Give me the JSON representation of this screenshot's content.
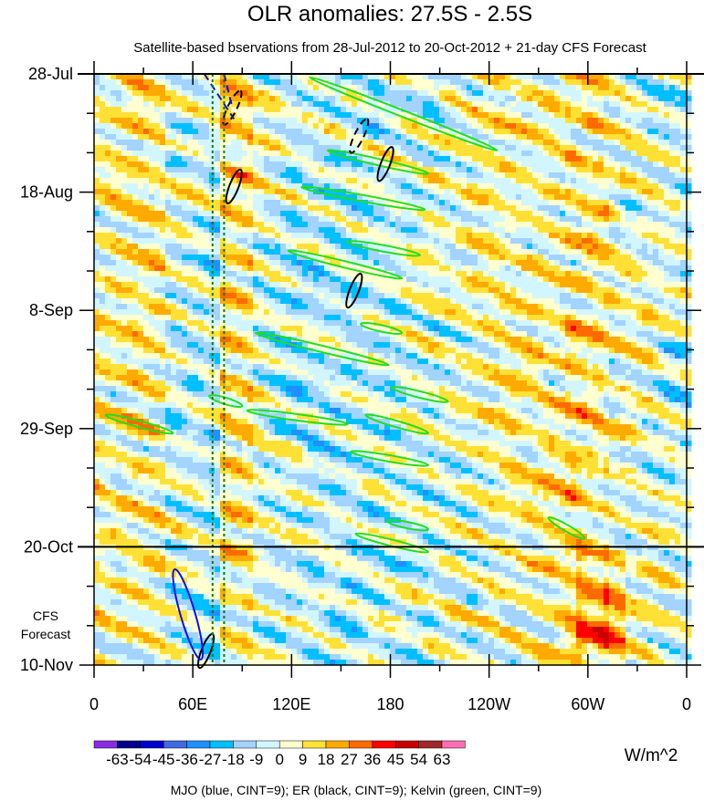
{
  "chart_data": {
    "type": "heatmap",
    "title": "OLR anomalies: 27.5S - 2.5S",
    "subtitle": "Satellite-based bservations from 28-Jul-2012 to 20-Oct-2012 + 21-day CFS Forecast",
    "x_ticks": [
      {
        "lon": 0,
        "label": "0"
      },
      {
        "lon": 60,
        "label": "60E"
      },
      {
        "lon": 120,
        "label": "120E"
      },
      {
        "lon": 180,
        "label": "180"
      },
      {
        "lon": 240,
        "label": "120W"
      },
      {
        "lon": 300,
        "label": "60W"
      },
      {
        "lon": 360,
        "label": "0"
      }
    ],
    "y_ticks": [
      {
        "day": 0,
        "label": "28-Jul"
      },
      {
        "day": 21,
        "label": "18-Aug"
      },
      {
        "day": 42,
        "label": "8-Sep"
      },
      {
        "day": 63,
        "label": "29-Sep"
      },
      {
        "day": 84,
        "label": "20-Oct"
      },
      {
        "day": 105,
        "label": "10-Nov"
      }
    ],
    "xlim": [
      0,
      360
    ],
    "ylim_days": [
      0,
      105
    ],
    "observation_end_day": 84,
    "forecast_label": [
      "CFS",
      "Forecast"
    ],
    "colorbar": {
      "levels": [
        "-63",
        "-54",
        "-45",
        "-36",
        "-27",
        "-18",
        "-9",
        "0",
        "9",
        "18",
        "27",
        "36",
        "45",
        "54",
        "63"
      ],
      "colors": [
        "#8a2be2",
        "#00008b",
        "#0000cd",
        "#4169e1",
        "#1e90ff",
        "#00bfff",
        "#a3d3ff",
        "#d2f6ff",
        "#ffffd0",
        "#ffe135",
        "#ffaa00",
        "#ff6a00",
        "#ff0000",
        "#c80000",
        "#a0282a",
        "#ff6eb4"
      ],
      "units": "W/m^2"
    },
    "footer": "MJO (blue, CINT=9); ER (black, CINT=9); Kelvin (green, CINT=9)",
    "kelvin_contours": [
      [
        131,
        0.6,
        245,
        13.6
      ],
      [
        142,
        13.6,
        203,
        17.7
      ],
      [
        126,
        20.1,
        201,
        24.1
      ],
      [
        154,
        29.8,
        198,
        32.2
      ],
      [
        118,
        31.4,
        187,
        36.3
      ],
      [
        98,
        46,
        179,
        51.7
      ],
      [
        162,
        44.4,
        187,
        46
      ],
      [
        181,
        55.7,
        215,
        58.2
      ],
      [
        93,
        59.8,
        154,
        62.2
      ],
      [
        7,
        60.6,
        48,
        63.8
      ],
      [
        165,
        60.6,
        203,
        63.8
      ],
      [
        156,
        67.1,
        203,
        69.5
      ],
      [
        178,
        79.4,
        203,
        80.9
      ],
      [
        159,
        81.7,
        203,
        84.9
      ],
      [
        276,
        78.8,
        298,
        82.5
      ],
      [
        70,
        57.2,
        90,
        59
      ]
    ],
    "er_contours": [
      [
        177,
        16
      ],
      [
        158,
        38.5
      ],
      [
        85,
        20
      ],
      [
        68,
        102.5
      ]
    ],
    "er_dashed": [
      [
        84,
        6
      ],
      [
        161,
        11
      ]
    ],
    "mjo_contours": [
      [
        57,
        96
      ]
    ],
    "mjo_dashed_lines": [
      [
        67,
        0,
        85,
        8
      ],
      [
        79,
        0,
        84,
        6
      ]
    ],
    "guide_lines_lon": [
      72,
      79
    ]
  }
}
